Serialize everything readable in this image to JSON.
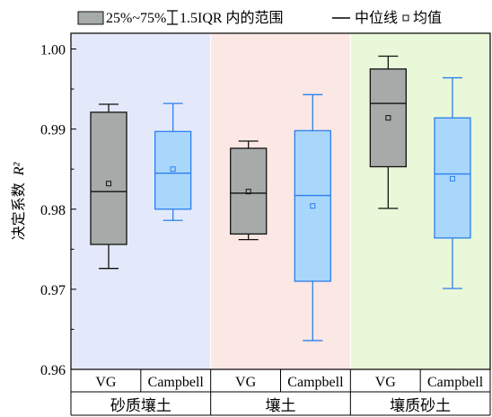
{
  "chart_data": {
    "type": "box",
    "ylabel": "决定系数",
    "ylabel_italic": "R²",
    "ylim": [
      0.96,
      1.005
    ],
    "yticks": [
      0.96,
      0.97,
      0.98,
      0.99,
      1.0
    ],
    "ytick_labels": [
      "0.96",
      "0.97",
      "0.98",
      "0.99",
      "1.00"
    ],
    "legend": {
      "position": "top",
      "items": [
        {
          "kind": "box",
          "label": "25%~75%"
        },
        {
          "kind": "whisker",
          "label": "1.5IQR 内的范围"
        },
        {
          "kind": "median",
          "label": "中位线"
        },
        {
          "kind": "mean",
          "label": "均值"
        }
      ]
    },
    "groups": [
      {
        "name": "砂质壤土",
        "background": "#e3e9fa"
      },
      {
        "name": "壤土",
        "background": "#fbe7e3"
      },
      {
        "name": "壤质砂土",
        "background": "#e9f8d8"
      }
    ],
    "boxes": [
      {
        "group": 0,
        "label": "VG",
        "style": "gray",
        "whisker_low": 0.9726,
        "q1": 0.9756,
        "median": 0.9822,
        "q3": 0.9921,
        "whisker_high": 0.9931,
        "mean": 0.9832
      },
      {
        "group": 0,
        "label": "Campbell",
        "style": "blue",
        "whisker_low": 0.9786,
        "q1": 0.98,
        "median": 0.9845,
        "q3": 0.9897,
        "whisker_high": 0.9932,
        "mean": 0.985
      },
      {
        "group": 1,
        "label": "VG",
        "style": "gray",
        "whisker_low": 0.9762,
        "q1": 0.9769,
        "median": 0.982,
        "q3": 0.9876,
        "whisker_high": 0.9885,
        "mean": 0.9822
      },
      {
        "group": 1,
        "label": "Campbell",
        "style": "blue",
        "whisker_low": 0.9636,
        "q1": 0.971,
        "median": 0.9817,
        "q3": 0.9898,
        "whisker_high": 0.9943,
        "mean": 0.9804
      },
      {
        "group": 2,
        "label": "VG",
        "style": "gray",
        "whisker_low": 0.9801,
        "q1": 0.9853,
        "median": 0.9932,
        "q3": 0.9975,
        "whisker_high": 0.9991,
        "mean": 0.9914
      },
      {
        "group": 2,
        "label": "Campbell",
        "style": "blue",
        "whisker_low": 0.9701,
        "q1": 0.9764,
        "median": 0.9844,
        "q3": 0.9914,
        "whisker_high": 0.9964,
        "mean": 0.9838
      }
    ],
    "styles": {
      "gray": {
        "fill": "#a6aaa9",
        "stroke": "#111111"
      },
      "blue": {
        "fill": "#a9d6fb",
        "stroke": "#2b7ff0"
      }
    }
  }
}
